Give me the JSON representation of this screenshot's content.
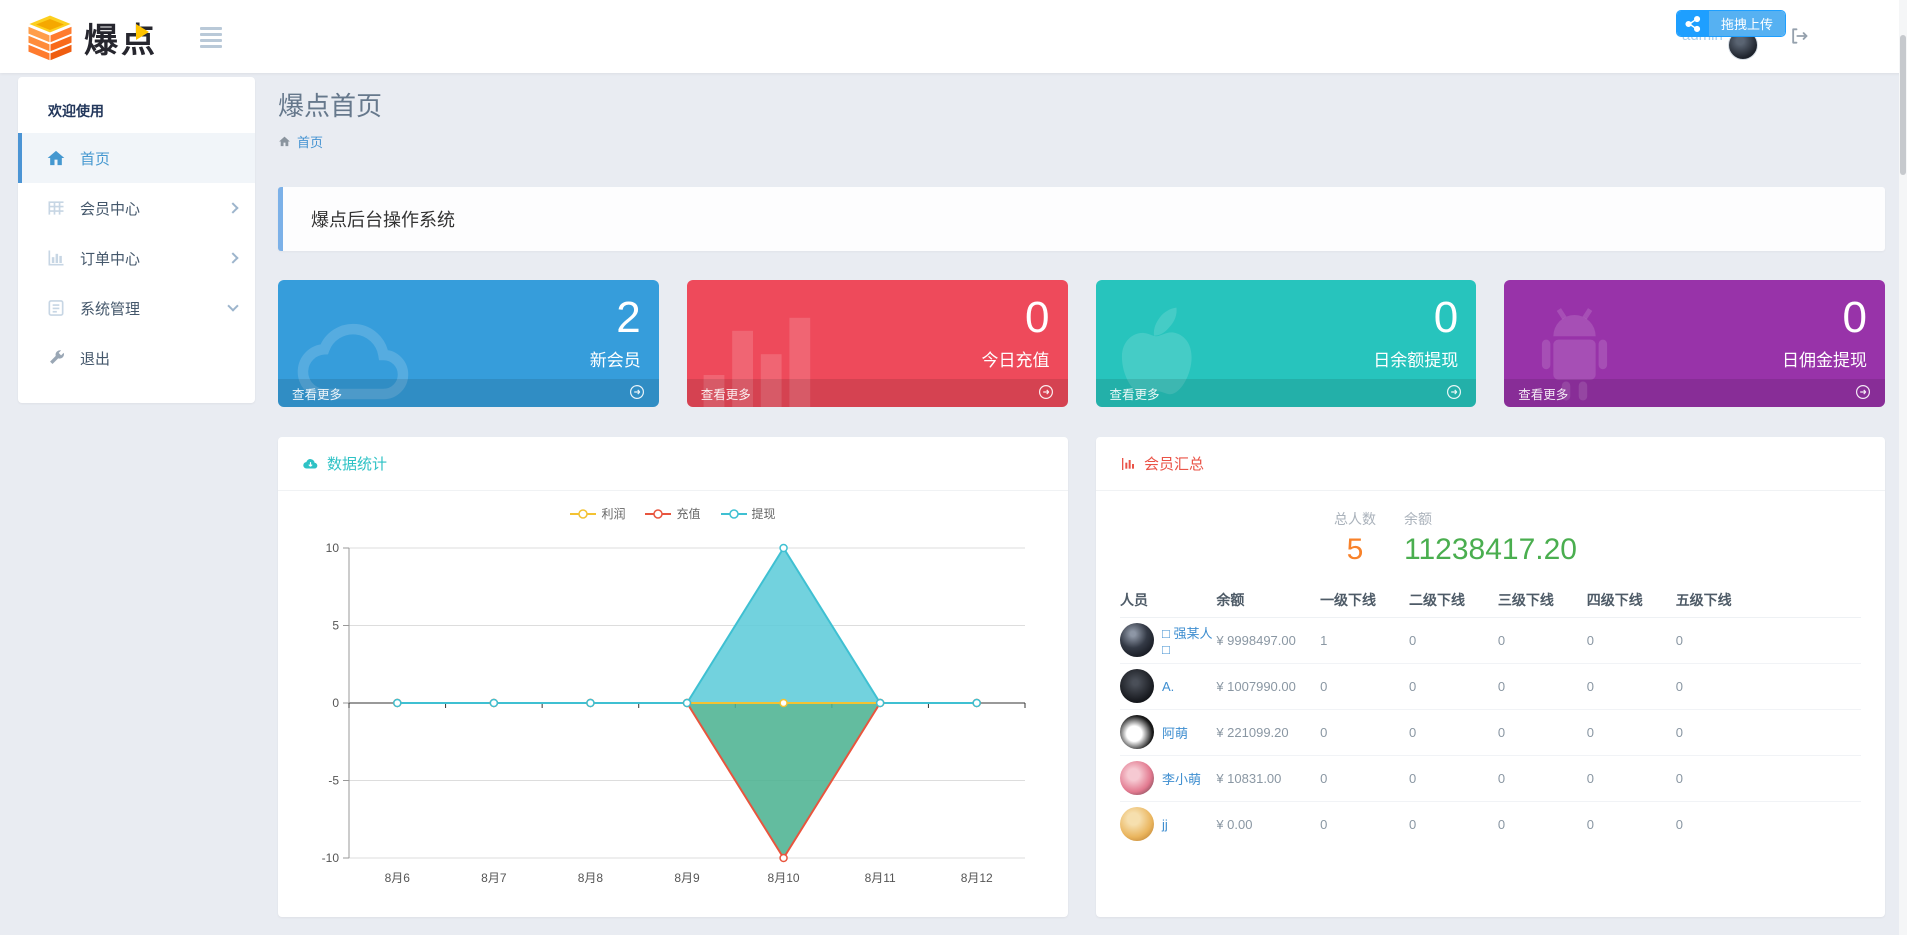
{
  "header": {
    "logo_text": "爆点",
    "upload_badge": {
      "label": "拖拽上传",
      "color": "#1e9fff"
    },
    "username": "admin"
  },
  "sidebar": {
    "welcome": "欢迎使用",
    "items": [
      {
        "label": "首页",
        "icon": "home-icon",
        "active": true,
        "chevron": "none"
      },
      {
        "label": "会员中心",
        "icon": "grid-icon",
        "active": false,
        "chevron": "right"
      },
      {
        "label": "订单中心",
        "icon": "chart-icon",
        "active": false,
        "chevron": "right"
      },
      {
        "label": "系统管理",
        "icon": "list-icon",
        "active": false,
        "chevron": "down"
      },
      {
        "label": "退出",
        "icon": "wrench-icon",
        "active": false,
        "chevron": "none"
      }
    ]
  },
  "page": {
    "title": "爆点首页",
    "breadcrumb_home": "首页",
    "alert": "爆点后台操作系统"
  },
  "stat_cards": [
    {
      "value": "2",
      "label": "新会员",
      "more": "查看更多",
      "color": "#369ddb",
      "icon": "cloud-icon"
    },
    {
      "value": "0",
      "label": "今日充值",
      "more": "查看更多",
      "color": "#ee4a5b",
      "icon": "bar-chart-icon"
    },
    {
      "value": "0",
      "label": "日余额提现",
      "more": "查看更多",
      "color": "#27c4bd",
      "icon": "apple-icon"
    },
    {
      "value": "0",
      "label": "日佣金提现",
      "more": "查看更多",
      "color": "#9833a9",
      "icon": "android-icon"
    }
  ],
  "chart_panel": {
    "title": "数据统计",
    "chart_data": {
      "type": "line",
      "categories": [
        "8月6",
        "8月7",
        "8月8",
        "8月9",
        "8月10",
        "8月11",
        "8月12"
      ],
      "series": [
        {
          "name": "利润",
          "color": "#f3c232",
          "area": null,
          "values": [
            0,
            0,
            0,
            0,
            0,
            0,
            0
          ]
        },
        {
          "name": "充值",
          "color": "#e8553e",
          "area": "#4db392",
          "values": [
            0,
            0,
            0,
            0,
            -10,
            0,
            0
          ]
        },
        {
          "name": "提现",
          "color": "#3fc0d2",
          "area": "#5fccd9",
          "values": [
            0,
            0,
            0,
            0,
            10,
            0,
            0
          ]
        }
      ],
      "ylim": [
        -10,
        10
      ],
      "yticks": [
        -10,
        -5,
        0,
        5,
        10
      ],
      "grid": true,
      "legend_position": "top-center"
    }
  },
  "members_panel": {
    "title": "会员汇总",
    "stats": [
      {
        "label": "总人数",
        "value": "5",
        "color": "#f8822a"
      },
      {
        "label": "余额",
        "value": "11238417.20",
        "color": "#4aae4f"
      }
    ],
    "table": {
      "headers": [
        "人员",
        "余额",
        "一级下线",
        "二级下线",
        "三级下线",
        "四级下线",
        "五级下线"
      ],
      "rows": [
        {
          "name": "□ 强某人□",
          "balance": "¥ 9998497.00",
          "levels": [
            "1",
            "0",
            "0",
            "0",
            "0"
          ]
        },
        {
          "name": "A.",
          "balance": "¥ 1007990.00",
          "levels": [
            "0",
            "0",
            "0",
            "0",
            "0"
          ]
        },
        {
          "name": "阿萌",
          "balance": "¥ 221099.20",
          "levels": [
            "0",
            "0",
            "0",
            "0",
            "0"
          ]
        },
        {
          "name": "李小萌",
          "balance": "¥ 10831.00",
          "levels": [
            "0",
            "0",
            "0",
            "0",
            "0"
          ]
        },
        {
          "name": "jj",
          "balance": "¥ 0.00",
          "levels": [
            "0",
            "0",
            "0",
            "0",
            "0"
          ]
        }
      ]
    }
  }
}
